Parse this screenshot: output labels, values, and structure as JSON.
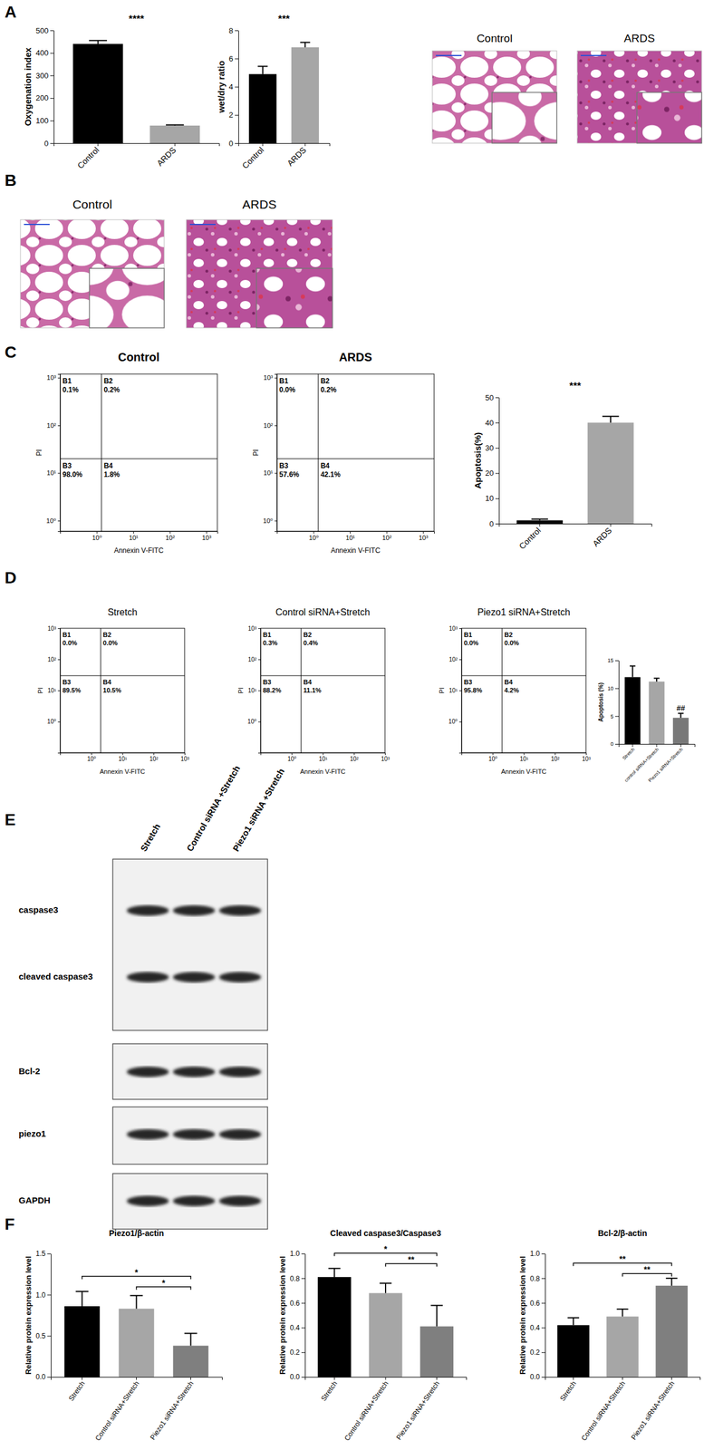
{
  "panels": [
    "A",
    "B",
    "C",
    "D",
    "E",
    "F"
  ],
  "histology": [
    {
      "labels": [
        "Control",
        "ARDS"
      ]
    },
    {
      "labels": [
        "Control",
        "ARDS"
      ]
    }
  ],
  "blot": {
    "lanes": [
      "Stretch",
      "Control siRNA +Stretch",
      "Piezo1 siRNA +Stretch"
    ],
    "rows": [
      "caspase3",
      "cleaved caspase3",
      "Bcl-2",
      "piezo1",
      "GAPDH"
    ]
  },
  "chart_data": [
    {
      "type": "bar",
      "y_label": "Oxygenation index",
      "categories": [
        "Control",
        "ARDS"
      ],
      "values": [
        440,
        78
      ],
      "errors": [
        15,
        3
      ],
      "colors": [
        "#000000",
        "#a6a6a6"
      ],
      "ylim": [
        0,
        500
      ],
      "yticks": [
        0,
        100,
        200,
        300,
        400,
        500
      ],
      "annotations": [
        {
          "text": "****"
        }
      ]
    },
    {
      "type": "bar",
      "y_label": "wet/dry ratio",
      "categories": [
        "Control",
        "ARDS"
      ],
      "values": [
        4.9,
        6.8
      ],
      "errors": [
        0.55,
        0.35
      ],
      "colors": [
        "#000000",
        "#a6a6a6"
      ],
      "ylim": [
        0,
        8
      ],
      "yticks": [
        0,
        2,
        4,
        6,
        8
      ],
      "annotations": [
        {
          "text": "***"
        }
      ]
    },
    {
      "type": "quadrant",
      "title": "Control",
      "x_label": "Annexin V-FITC",
      "y_label": "PI",
      "log": true,
      "xlim": [
        0.1,
        2000
      ],
      "ylim": [
        0.6,
        1200
      ],
      "xticks": [
        {
          "value": 1,
          "label": "10⁰"
        },
        {
          "value": 10,
          "label": "10¹"
        },
        {
          "value": 100,
          "label": "10²"
        },
        {
          "value": 1000,
          "label": "10³"
        }
      ],
      "yticks": [
        {
          "value": 1,
          "label": "10⁰"
        },
        {
          "value": 10,
          "label": "10¹"
        },
        {
          "value": 100,
          "label": "10²"
        },
        {
          "value": 1000,
          "label": "10³"
        }
      ],
      "gates": {
        "x": 1.35,
        "y": 20
      },
      "quadrants": {
        "names": [
          "B1",
          "B2",
          "B3",
          "B4"
        ],
        "values": [
          0.1,
          0.2,
          98.0,
          1.8
        ],
        "value_labels": [
          "0.1%",
          "0.2%",
          "98.0%",
          "1.8%"
        ]
      }
    },
    {
      "type": "quadrant",
      "title": "ARDS",
      "x_label": "Annexin V-FITC",
      "y_label": "PI",
      "log": true,
      "xlim": [
        0.1,
        2000
      ],
      "ylim": [
        0.6,
        1200
      ],
      "xticks": [
        {
          "value": 1,
          "label": "10⁰"
        },
        {
          "value": 10,
          "label": "10¹"
        },
        {
          "value": 100,
          "label": "10²"
        },
        {
          "value": 1000,
          "label": "10³"
        }
      ],
      "yticks": [
        {
          "value": 1,
          "label": "10⁰"
        },
        {
          "value": 10,
          "label": "10¹"
        },
        {
          "value": 100,
          "label": "10²"
        },
        {
          "value": 1000,
          "label": "10³"
        }
      ],
      "gates": {
        "x": 1.35,
        "y": 20
      },
      "quadrants": {
        "names": [
          "B1",
          "B2",
          "B3",
          "B4"
        ],
        "values": [
          0.0,
          0.2,
          57.6,
          42.1
        ],
        "value_labels": [
          "0.0%",
          "0.2%",
          "57.6%",
          "42.1%"
        ]
      }
    },
    {
      "type": "bar",
      "y_label": "Apoptosis(%)",
      "categories": [
        "Control",
        "ARDS"
      ],
      "values": [
        1.3,
        40
      ],
      "errors": [
        0.5,
        2.5
      ],
      "colors": [
        "#000000",
        "#a6a6a6"
      ],
      "ylim": [
        0,
        50
      ],
      "yticks": [
        0,
        10,
        20,
        30,
        40,
        50
      ],
      "annotations": [
        {
          "text": "***"
        }
      ]
    },
    {
      "type": "quadrant",
      "title": "Stretch",
      "x_label": "Annexin V-FITC",
      "y_label": "PI",
      "log": true,
      "xlim": [
        0.1,
        1000
      ],
      "ylim": [
        0.1,
        1000
      ],
      "xticks": [
        {
          "value": 1,
          "label": "10⁰"
        },
        {
          "value": 10,
          "label": "10¹"
        },
        {
          "value": 100,
          "label": "10²"
        },
        {
          "value": 1000,
          "label": "10³"
        }
      ],
      "yticks": [
        {
          "value": 1,
          "label": "10⁰"
        },
        {
          "value": 10,
          "label": "10¹"
        },
        {
          "value": 100,
          "label": "10²"
        },
        {
          "value": 1000,
          "label": "10³"
        }
      ],
      "gates": {
        "x": 2,
        "y": 30
      },
      "quadrants": {
        "names": [
          "B1",
          "B2",
          "B3",
          "B4"
        ],
        "values": [
          0.0,
          0.0,
          89.5,
          10.5
        ],
        "value_labels": [
          "0.0%",
          "0.0%",
          "89.5%",
          "10.5%"
        ]
      }
    },
    {
      "type": "quadrant",
      "title": "Control siRNA+Stretch",
      "x_label": "Annexin V-FITC",
      "y_label": "PI",
      "log": true,
      "xlim": [
        0.1,
        1000
      ],
      "ylim": [
        0.1,
        1000
      ],
      "xticks": [
        {
          "value": 1,
          "label": "10⁰"
        },
        {
          "value": 10,
          "label": "10¹"
        },
        {
          "value": 100,
          "label": "10²"
        },
        {
          "value": 1000,
          "label": "10³"
        }
      ],
      "yticks": [
        {
          "value": 1,
          "label": "10⁰"
        },
        {
          "value": 10,
          "label": "10¹"
        },
        {
          "value": 100,
          "label": "10²"
        },
        {
          "value": 1000,
          "label": "10³"
        }
      ],
      "gates": {
        "x": 2,
        "y": 30
      },
      "quadrants": {
        "names": [
          "B1",
          "B2",
          "B3",
          "B4"
        ],
        "values": [
          0.3,
          0.4,
          88.2,
          11.1
        ],
        "value_labels": [
          "0.3%",
          "0.4%",
          "88.2%",
          "11.1%"
        ]
      }
    },
    {
      "type": "quadrant",
      "title": "Piezo1 siRNA+Stretch",
      "x_label": "Annexin V-FITC",
      "y_label": "PI",
      "log": true,
      "xlim": [
        0.1,
        1000
      ],
      "ylim": [
        0.1,
        1000
      ],
      "xticks": [
        {
          "value": 1,
          "label": "10⁰"
        },
        {
          "value": 10,
          "label": "10¹"
        },
        {
          "value": 100,
          "label": "10²"
        },
        {
          "value": 1000,
          "label": "10³"
        }
      ],
      "yticks": [
        {
          "value": 1,
          "label": "10⁰"
        },
        {
          "value": 10,
          "label": "10¹"
        },
        {
          "value": 100,
          "label": "10²"
        },
        {
          "value": 1000,
          "label": "10³"
        }
      ],
      "gates": {
        "x": 2,
        "y": 30
      },
      "quadrants": {
        "names": [
          "B1",
          "B2",
          "B3",
          "B4"
        ],
        "values": [
          0.0,
          0.0,
          95.8,
          4.2
        ],
        "value_labels": [
          "0.0%",
          "0.0%",
          "95.8%",
          "4.2%"
        ]
      }
    },
    {
      "type": "bar",
      "y_label": "Apoptosis (%)",
      "categories": [
        "Stretch",
        "control siRNA+Stretch",
        "Piezo1 siRNA+Stretch"
      ],
      "values": [
        12,
        11.2,
        4.7
      ],
      "errors": [
        2,
        0.6,
        0.8
      ],
      "colors": [
        "#000000",
        "#a6a6a6",
        "#787878"
      ],
      "ylim": [
        0,
        15
      ],
      "yticks": [
        0,
        5,
        10,
        15
      ],
      "annotations": [
        {
          "text": "##",
          "category": 2
        }
      ]
    },
    {
      "type": "bar",
      "title": "Piezo1/β-actin",
      "y_label": "Relative protein expression level",
      "categories": [
        "Stretch",
        "Control siRNA+Stretch",
        "Piezo1 siRNA+Stretch"
      ],
      "values": [
        0.86,
        0.83,
        0.38
      ],
      "errors": [
        0.18,
        0.16,
        0.15
      ],
      "colors": [
        "#000000",
        "#a6a6a6",
        "#7f7f7f"
      ],
      "ylim": [
        0,
        1.5
      ],
      "yticks": [
        {
          "value": 0,
          "label": "0.0"
        },
        {
          "value": 0.5,
          "label": "0.5"
        },
        {
          "value": 1,
          "label": "1.0"
        },
        {
          "value": 1.5,
          "label": "1.5"
        }
      ],
      "comparisons": [
        {
          "from": 0,
          "to": 2,
          "text": "*"
        },
        {
          "from": 1,
          "to": 2,
          "text": "*"
        }
      ]
    },
    {
      "type": "bar",
      "title": "Cleaved caspase3/Caspase3",
      "y_label": "Relative protein expression level",
      "categories": [
        "Stretch",
        "Control siRNA+Stretch",
        "Piezo1 siRNA+Stretch"
      ],
      "values": [
        0.81,
        0.68,
        0.41
      ],
      "errors": [
        0.07,
        0.08,
        0.17
      ],
      "colors": [
        "#000000",
        "#a6a6a6",
        "#7f7f7f"
      ],
      "ylim": [
        0,
        1.0
      ],
      "yticks": [
        {
          "value": 0,
          "label": "0.0"
        },
        {
          "value": 0.2,
          "label": "0.2"
        },
        {
          "value": 0.4,
          "label": "0.4"
        },
        {
          "value": 0.6,
          "label": "0.6"
        },
        {
          "value": 0.8,
          "label": "0.8"
        },
        {
          "value": 1,
          "label": "1.0"
        }
      ],
      "comparisons": [
        {
          "from": 0,
          "to": 2,
          "text": "*"
        },
        {
          "from": 1,
          "to": 2,
          "text": "**"
        }
      ]
    },
    {
      "type": "bar",
      "title": "Bcl-2/β-actin",
      "y_label": "Relative protein expression level",
      "categories": [
        "Stretch",
        "Control siRNA+Stretch",
        "Piezo1 siRNA+Stretch"
      ],
      "values": [
        0.42,
        0.49,
        0.74
      ],
      "errors": [
        0.06,
        0.06,
        0.06
      ],
      "colors": [
        "#000000",
        "#a6a6a6",
        "#7f7f7f"
      ],
      "ylim": [
        0,
        1.0
      ],
      "yticks": [
        {
          "value": 0,
          "label": "0.0"
        },
        {
          "value": 0.2,
          "label": "0.2"
        },
        {
          "value": 0.4,
          "label": "0.4"
        },
        {
          "value": 0.6,
          "label": "0.6"
        },
        {
          "value": 0.8,
          "label": "0.8"
        },
        {
          "value": 1,
          "label": "1.0"
        }
      ],
      "comparisons": [
        {
          "from": 0,
          "to": 2,
          "text": "**"
        },
        {
          "from": 1,
          "to": 2,
          "text": "**"
        }
      ]
    }
  ]
}
